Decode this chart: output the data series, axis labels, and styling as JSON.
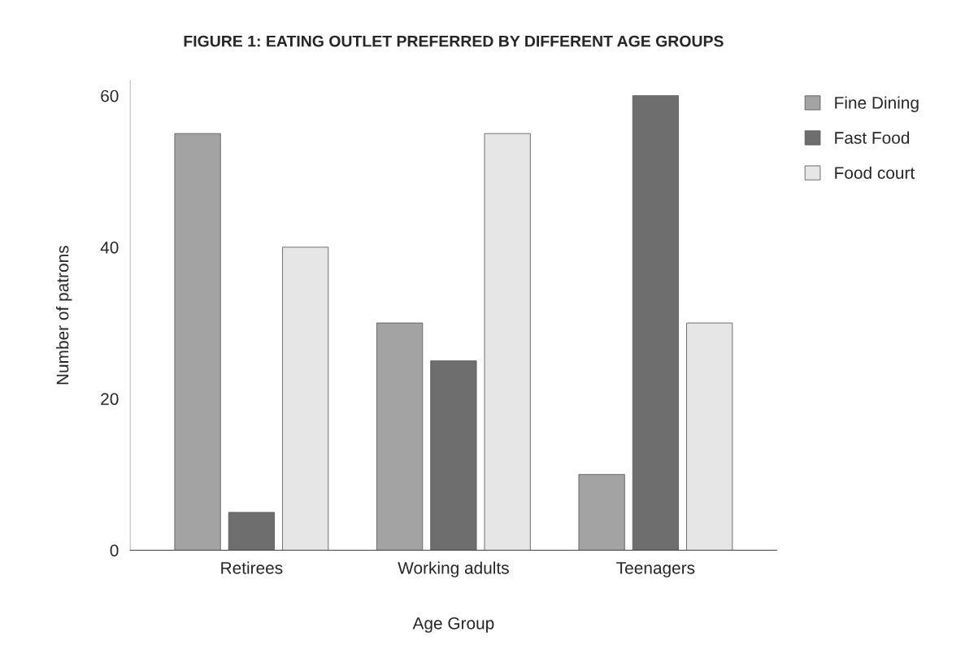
{
  "chart_data": {
    "type": "bar",
    "title": "FIGURE 1: EATING OUTLET PREFERRED BY DIFFERENT AGE GROUPS",
    "xlabel": "Age Group",
    "ylabel": "Number of patrons",
    "categories": [
      "Retirees",
      "Working adults",
      "Teenagers"
    ],
    "series": [
      {
        "name": "Fine Dining",
        "color": "#a3a3a3",
        "values": [
          55,
          30,
          10
        ]
      },
      {
        "name": "Fast Food",
        "color": "#6e6e6e",
        "values": [
          5,
          25,
          60
        ]
      },
      {
        "name": "Food court",
        "color": "#e6e6e6",
        "values": [
          40,
          55,
          30
        ]
      }
    ],
    "ylim": [
      0,
      62
    ],
    "yticks": [
      0,
      20,
      40,
      60
    ],
    "grid": false,
    "legend": "top right"
  }
}
